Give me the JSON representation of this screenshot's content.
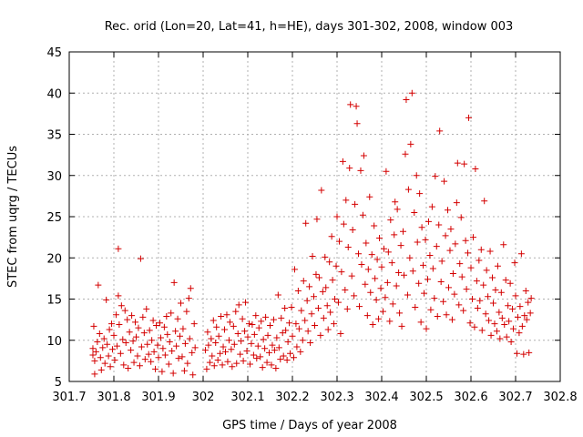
{
  "chart_data": {
    "type": "scatter",
    "title": "Rec. orid (Lon=20, Lat=41, h=HE), days 301-302, 2008, window 003",
    "xlabel": "GPS time / Days of year 2008",
    "ylabel": "STEC from uqrg / TECUs",
    "xlim": [
      301.7,
      302.8
    ],
    "ylim": [
      5,
      45
    ],
    "xticks": [
      301.7,
      301.8,
      301.9,
      302.0,
      302.1,
      302.2,
      302.3,
      302.4,
      302.5,
      302.6,
      302.7,
      302.8
    ],
    "xtick_labels": [
      "301.7",
      "301.8",
      "301.9",
      "302",
      "302.1",
      "302.2",
      "302.3",
      "302.4",
      "302.5",
      "302.6",
      "302.7",
      "302.8"
    ],
    "yticks": [
      5,
      10,
      15,
      20,
      25,
      30,
      35,
      40,
      45
    ],
    "ytick_labels": [
      "5",
      "10",
      "15",
      "20",
      "25",
      "30",
      "35",
      "40",
      "45"
    ],
    "grid": true,
    "marker": "plus",
    "color": "#d40000",
    "points": [
      [
        301.753,
        8.2
      ],
      [
        301.753,
        9.0
      ],
      [
        301.755,
        11.7
      ],
      [
        301.757,
        7.5
      ],
      [
        301.757,
        5.9
      ],
      [
        301.76,
        8.6
      ],
      [
        301.763,
        9.8
      ],
      [
        301.765,
        16.7
      ],
      [
        301.768,
        10.8
      ],
      [
        301.77,
        7.9
      ],
      [
        301.772,
        6.4
      ],
      [
        301.775,
        9.1
      ],
      [
        301.778,
        10.2
      ],
      [
        301.78,
        7.2
      ],
      [
        301.783,
        14.9
      ],
      [
        301.785,
        9.5
      ],
      [
        301.788,
        8.1
      ],
      [
        301.79,
        11.3
      ],
      [
        301.792,
        6.8
      ],
      [
        301.795,
        12.0
      ],
      [
        301.797,
        8.9
      ],
      [
        301.8,
        10.6
      ],
      [
        301.802,
        7.6
      ],
      [
        301.805,
        13.1
      ],
      [
        301.807,
        9.3
      ],
      [
        301.81,
        15.4
      ],
      [
        301.81,
        21.1
      ],
      [
        301.812,
        11.9
      ],
      [
        301.815,
        8.4
      ],
      [
        301.817,
        14.2
      ],
      [
        301.82,
        10.1
      ],
      [
        301.822,
        7.0
      ],
      [
        301.825,
        13.6
      ],
      [
        301.827,
        9.7
      ],
      [
        301.83,
        12.5
      ],
      [
        301.832,
        6.6
      ],
      [
        301.835,
        11.0
      ],
      [
        301.838,
        8.8
      ],
      [
        301.84,
        13.0
      ],
      [
        301.843,
        9.9
      ],
      [
        301.845,
        7.3
      ],
      [
        301.848,
        12.2
      ],
      [
        301.85,
        10.4
      ],
      [
        301.853,
        8.1
      ],
      [
        301.855,
        11.5
      ],
      [
        301.858,
        6.9
      ],
      [
        301.86,
        19.9
      ],
      [
        301.862,
        9.2
      ],
      [
        301.865,
        12.8
      ],
      [
        301.868,
        10.9
      ],
      [
        301.87,
        7.7
      ],
      [
        301.873,
        13.8
      ],
      [
        301.875,
        9.5
      ],
      [
        301.878,
        8.3
      ],
      [
        301.88,
        11.2
      ],
      [
        301.883,
        7.4
      ],
      [
        301.885,
        10.0
      ],
      [
        301.888,
        12.4
      ],
      [
        301.89,
        8.6
      ],
      [
        301.893,
        6.5
      ],
      [
        301.895,
        11.8
      ],
      [
        301.898,
        9.4
      ],
      [
        301.9,
        7.9
      ],
      [
        301.903,
        12.1
      ],
      [
        301.905,
        10.3
      ],
      [
        301.908,
        6.2
      ],
      [
        301.91,
        9.0
      ],
      [
        301.913,
        11.6
      ],
      [
        301.915,
        8.2
      ],
      [
        301.918,
        12.9
      ],
      [
        301.92,
        10.7
      ],
      [
        301.923,
        7.1
      ],
      [
        301.925,
        9.8
      ],
      [
        301.928,
        13.3
      ],
      [
        301.93,
        8.7
      ],
      [
        301.933,
        6.0
      ],
      [
        301.935,
        17.0
      ],
      [
        301.938,
        11.1
      ],
      [
        301.94,
        9.3
      ],
      [
        301.943,
        12.6
      ],
      [
        301.945,
        7.8
      ],
      [
        301.948,
        10.5
      ],
      [
        301.95,
        14.5
      ],
      [
        301.953,
        8.0
      ],
      [
        301.955,
        11.4
      ],
      [
        301.958,
        6.3
      ],
      [
        301.96,
        9.6
      ],
      [
        301.963,
        13.5
      ],
      [
        301.965,
        7.2
      ],
      [
        301.968,
        15.1
      ],
      [
        301.97,
        10.2
      ],
      [
        301.972,
        16.3
      ],
      [
        301.975,
        8.5
      ],
      [
        301.977,
        5.8
      ],
      [
        301.98,
        12.0
      ],
      [
        301.982,
        9.1
      ],
      [
        302.005,
        8.8
      ],
      [
        302.008,
        6.5
      ],
      [
        302.01,
        11.0
      ],
      [
        302.012,
        9.4
      ],
      [
        302.015,
        7.3
      ],
      [
        302.018,
        10.2
      ],
      [
        302.02,
        8.1
      ],
      [
        302.023,
        12.4
      ],
      [
        302.025,
        6.9
      ],
      [
        302.028,
        9.7
      ],
      [
        302.03,
        11.6
      ],
      [
        302.033,
        7.6
      ],
      [
        302.035,
        10.5
      ],
      [
        302.038,
        8.4
      ],
      [
        302.04,
        12.9
      ],
      [
        302.043,
        7.0
      ],
      [
        302.045,
        9.2
      ],
      [
        302.048,
        11.3
      ],
      [
        302.05,
        8.6
      ],
      [
        302.053,
        13.1
      ],
      [
        302.055,
        7.4
      ],
      [
        302.058,
        10.0
      ],
      [
        302.06,
        12.2
      ],
      [
        302.063,
        8.9
      ],
      [
        302.065,
        6.8
      ],
      [
        302.068,
        11.7
      ],
      [
        302.07,
        9.5
      ],
      [
        302.073,
        13.5
      ],
      [
        302.075,
        7.2
      ],
      [
        302.078,
        10.8
      ],
      [
        302.08,
        14.3
      ],
      [
        302.083,
        8.3
      ],
      [
        302.085,
        9.9
      ],
      [
        302.088,
        12.6
      ],
      [
        302.09,
        7.5
      ],
      [
        302.093,
        11.1
      ],
      [
        302.095,
        14.6
      ],
      [
        302.098,
        8.7
      ],
      [
        302.1,
        10.4
      ],
      [
        302.103,
        12.0
      ],
      [
        302.105,
        7.1
      ],
      [
        302.108,
        9.6
      ],
      [
        302.11,
        11.9
      ],
      [
        302.113,
        8.2
      ],
      [
        302.115,
        10.7
      ],
      [
        302.118,
        13.0
      ],
      [
        302.12,
        7.8
      ],
      [
        302.123,
        9.3
      ],
      [
        302.125,
        11.5
      ],
      [
        302.128,
        8.0
      ],
      [
        302.13,
        12.3
      ],
      [
        302.133,
        6.7
      ],
      [
        302.135,
        10.1
      ],
      [
        302.138,
        9.0
      ],
      [
        302.14,
        12.8
      ],
      [
        302.143,
        7.3
      ],
      [
        302.145,
        10.6
      ],
      [
        302.148,
        8.5
      ],
      [
        302.15,
        11.8
      ],
      [
        302.153,
        7.0
      ],
      [
        302.155,
        9.4
      ],
      [
        302.158,
        12.5
      ],
      [
        302.16,
        8.8
      ],
      [
        302.163,
        6.6
      ],
      [
        302.165,
        10.3
      ],
      [
        302.168,
        15.5
      ],
      [
        302.17,
        9.1
      ],
      [
        302.173,
        7.7
      ],
      [
        302.175,
        12.7
      ],
      [
        302.178,
        10.9
      ],
      [
        302.18,
        8.1
      ],
      [
        302.183,
        13.9
      ],
      [
        302.185,
        11.2
      ],
      [
        302.188,
        7.6
      ],
      [
        302.19,
        9.8
      ],
      [
        302.193,
        12.1
      ],
      [
        302.195,
        8.4
      ],
      [
        302.198,
        14.0
      ],
      [
        302.2,
        10.5
      ],
      [
        302.203,
        7.9
      ],
      [
        302.205,
        18.6
      ],
      [
        302.208,
        12.0
      ],
      [
        302.21,
        9.2
      ],
      [
        302.213,
        16.0
      ],
      [
        302.215,
        11.4
      ],
      [
        302.218,
        8.6
      ],
      [
        302.22,
        13.6
      ],
      [
        302.223,
        10.0
      ],
      [
        302.225,
        17.2
      ],
      [
        302.228,
        12.4
      ],
      [
        302.23,
        24.2
      ],
      [
        302.233,
        14.8
      ],
      [
        302.235,
        11.1
      ],
      [
        302.238,
        16.5
      ],
      [
        302.24,
        9.7
      ],
      [
        302.243,
        13.2
      ],
      [
        302.245,
        20.2
      ],
      [
        302.248,
        15.3
      ],
      [
        302.25,
        11.8
      ],
      [
        302.253,
        18.0
      ],
      [
        302.255,
        24.7
      ],
      [
        302.258,
        13.9
      ],
      [
        302.26,
        17.6
      ],
      [
        302.263,
        10.6
      ],
      [
        302.265,
        28.2
      ],
      [
        302.268,
        15.9
      ],
      [
        302.27,
        12.7
      ],
      [
        302.273,
        20.1
      ],
      [
        302.275,
        16.4
      ],
      [
        302.278,
        14.2
      ],
      [
        302.28,
        11.3
      ],
      [
        302.283,
        19.5
      ],
      [
        302.285,
        13.4
      ],
      [
        302.288,
        22.6
      ],
      [
        302.29,
        17.3
      ],
      [
        302.293,
        12.0
      ],
      [
        302.295,
        15.0
      ],
      [
        302.298,
        19.0
      ],
      [
        302.3,
        25.0
      ],
      [
        302.303,
        14.6
      ],
      [
        302.305,
        22.0
      ],
      [
        302.308,
        10.8
      ],
      [
        302.31,
        18.3
      ],
      [
        302.313,
        31.7
      ],
      [
        302.315,
        24.1
      ],
      [
        302.318,
        16.1
      ],
      [
        302.32,
        27.0
      ],
      [
        302.323,
        13.8
      ],
      [
        302.325,
        21.3
      ],
      [
        302.328,
        30.9
      ],
      [
        302.33,
        38.6
      ],
      [
        302.333,
        17.8
      ],
      [
        302.335,
        23.4
      ],
      [
        302.338,
        15.4
      ],
      [
        302.34,
        26.5
      ],
      [
        302.343,
        38.4
      ],
      [
        302.345,
        36.3
      ],
      [
        302.348,
        20.5
      ],
      [
        302.35,
        14.1
      ],
      [
        302.353,
        30.6
      ],
      [
        302.355,
        19.2
      ],
      [
        302.358,
        25.2
      ],
      [
        302.36,
        32.4
      ],
      [
        302.363,
        16.8
      ],
      [
        302.365,
        21.8
      ],
      [
        302.368,
        13.0
      ],
      [
        302.37,
        18.6
      ],
      [
        302.373,
        27.4
      ],
      [
        302.375,
        15.8
      ],
      [
        302.378,
        20.4
      ],
      [
        302.38,
        11.9
      ],
      [
        302.383,
        23.9
      ],
      [
        302.385,
        17.5
      ],
      [
        302.388,
        14.9
      ],
      [
        302.39,
        19.8
      ],
      [
        302.393,
        12.6
      ],
      [
        302.395,
        22.4
      ],
      [
        302.398,
        16.3
      ],
      [
        302.4,
        18.9
      ],
      [
        302.403,
        13.5
      ],
      [
        302.405,
        21.1
      ],
      [
        302.408,
        15.2
      ],
      [
        302.41,
        30.5
      ],
      [
        302.413,
        17.0
      ],
      [
        302.415,
        20.7
      ],
      [
        302.418,
        12.3
      ],
      [
        302.42,
        24.6
      ],
      [
        302.423,
        19.4
      ],
      [
        302.425,
        14.4
      ],
      [
        302.428,
        22.8
      ],
      [
        302.43,
        26.8
      ],
      [
        302.433,
        16.6
      ],
      [
        302.435,
        25.9
      ],
      [
        302.438,
        18.2
      ],
      [
        302.44,
        13.3
      ],
      [
        302.443,
        21.5
      ],
      [
        302.445,
        11.7
      ],
      [
        302.448,
        23.2
      ],
      [
        302.45,
        17.9
      ],
      [
        302.453,
        32.6
      ],
      [
        302.455,
        39.2
      ],
      [
        302.458,
        15.5
      ],
      [
        302.46,
        28.3
      ],
      [
        302.463,
        20.0
      ],
      [
        302.465,
        33.8
      ],
      [
        302.468,
        40.0
      ],
      [
        302.47,
        18.4
      ],
      [
        302.473,
        25.5
      ],
      [
        302.475,
        14.0
      ],
      [
        302.478,
        30.0
      ],
      [
        302.48,
        21.9
      ],
      [
        302.483,
        16.9
      ],
      [
        302.485,
        27.8
      ],
      [
        302.488,
        12.2
      ],
      [
        302.49,
        23.7
      ],
      [
        302.493,
        19.1
      ],
      [
        302.495,
        15.7
      ],
      [
        302.498,
        22.2
      ],
      [
        302.5,
        11.4
      ],
      [
        302.503,
        17.4
      ],
      [
        302.505,
        24.4
      ],
      [
        302.508,
        20.3
      ],
      [
        302.51,
        13.7
      ],
      [
        302.513,
        26.2
      ],
      [
        302.515,
        18.7
      ],
      [
        302.518,
        15.1
      ],
      [
        302.52,
        29.9
      ],
      [
        302.523,
        21.4
      ],
      [
        302.525,
        12.9
      ],
      [
        302.528,
        24.0
      ],
      [
        302.53,
        35.4
      ],
      [
        302.533,
        17.1
      ],
      [
        302.535,
        19.6
      ],
      [
        302.538,
        14.7
      ],
      [
        302.54,
        29.3
      ],
      [
        302.543,
        22.7
      ],
      [
        302.545,
        13.1
      ],
      [
        302.548,
        25.8
      ],
      [
        302.55,
        16.4
      ],
      [
        302.553,
        20.9
      ],
      [
        302.555,
        23.5
      ],
      [
        302.558,
        12.5
      ],
      [
        302.56,
        18.1
      ],
      [
        302.563,
        15.6
      ],
      [
        302.565,
        21.7
      ],
      [
        302.568,
        26.7
      ],
      [
        302.57,
        31.5
      ],
      [
        302.573,
        14.3
      ],
      [
        302.575,
        19.3
      ],
      [
        302.578,
        24.9
      ],
      [
        302.58,
        17.7
      ],
      [
        302.583,
        13.6
      ],
      [
        302.585,
        31.4
      ],
      [
        302.588,
        22.1
      ],
      [
        302.59,
        16.2
      ],
      [
        302.593,
        20.6
      ],
      [
        302.595,
        37.0
      ],
      [
        302.598,
        12.1
      ],
      [
        302.6,
        18.8
      ],
      [
        302.603,
        15.0
      ],
      [
        302.605,
        22.5
      ],
      [
        302.608,
        11.6
      ],
      [
        302.61,
        30.8
      ],
      [
        302.613,
        17.2
      ],
      [
        302.615,
        13.9
      ],
      [
        302.618,
        19.7
      ],
      [
        302.62,
        14.8
      ],
      [
        302.623,
        21.0
      ],
      [
        302.625,
        11.2
      ],
      [
        302.628,
        16.7
      ],
      [
        302.63,
        26.9
      ],
      [
        302.633,
        13.2
      ],
      [
        302.635,
        18.5
      ],
      [
        302.638,
        15.3
      ],
      [
        302.64,
        12.4
      ],
      [
        302.643,
        20.8
      ],
      [
        302.645,
        10.6
      ],
      [
        302.648,
        17.6
      ],
      [
        302.65,
        14.5
      ],
      [
        302.653,
        12.0
      ],
      [
        302.655,
        16.1
      ],
      [
        302.658,
        11.1
      ],
      [
        302.66,
        19.0
      ],
      [
        302.663,
        13.4
      ],
      [
        302.665,
        10.2
      ],
      [
        302.668,
        15.8
      ],
      [
        302.67,
        12.7
      ],
      [
        302.673,
        21.6
      ],
      [
        302.675,
        11.9
      ],
      [
        302.678,
        17.3
      ],
      [
        302.68,
        10.4
      ],
      [
        302.683,
        14.2
      ],
      [
        302.685,
        12.3
      ],
      [
        302.688,
        16.9
      ],
      [
        302.69,
        9.8
      ],
      [
        302.693,
        13.8
      ],
      [
        302.695,
        11.4
      ],
      [
        302.698,
        19.4
      ],
      [
        302.7,
        15.4
      ],
      [
        302.703,
        8.4
      ],
      [
        302.705,
        12.8
      ],
      [
        302.708,
        10.9
      ],
      [
        302.71,
        14.1
      ],
      [
        302.713,
        20.5
      ],
      [
        302.715,
        11.7
      ],
      [
        302.718,
        8.3
      ],
      [
        302.72,
        13.0
      ],
      [
        302.723,
        16.0
      ],
      [
        302.725,
        12.5
      ],
      [
        302.728,
        14.6
      ],
      [
        302.73,
        8.5
      ],
      [
        302.733,
        13.3
      ],
      [
        302.735,
        15.1
      ]
    ]
  }
}
